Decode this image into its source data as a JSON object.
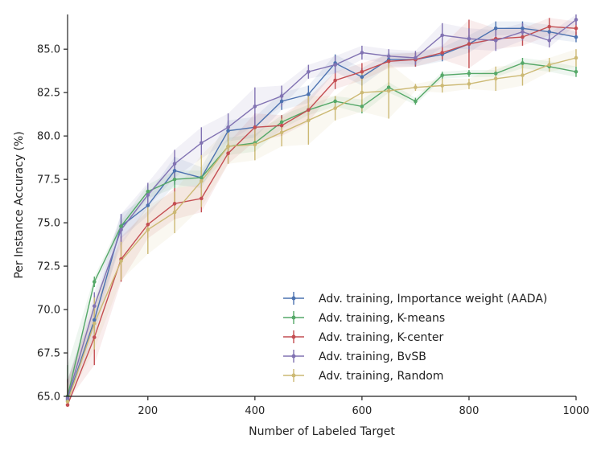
{
  "chart_data": {
    "type": "line",
    "xlabel": "Number of Labeled Target",
    "ylabel": "Per Instance Accuracy (%)",
    "xlim": [
      50,
      1000
    ],
    "ylim": [
      65.0,
      87.0
    ],
    "xticks": [
      200,
      400,
      600,
      800,
      1000
    ],
    "xtick_labels": [
      "200",
      "400",
      "600",
      "800",
      "1000"
    ],
    "yticks": [
      65.0,
      67.5,
      70.0,
      72.5,
      75.0,
      77.5,
      80.0,
      82.5,
      85.0
    ],
    "ytick_labels": [
      "65.0",
      "67.5",
      "70.0",
      "72.5",
      "75.0",
      "77.5",
      "80.0",
      "82.5",
      "85.0"
    ],
    "legend_position": "lower-right",
    "x": [
      50,
      100,
      150,
      200,
      250,
      300,
      350,
      400,
      450,
      500,
      550,
      600,
      650,
      700,
      750,
      800,
      850,
      900,
      950,
      1000
    ],
    "series": [
      {
        "name": "Adv. training, Importance weight (AADA)",
        "color": "#4c72b0",
        "values": [
          64.8,
          69.4,
          74.8,
          76.0,
          78.0,
          77.6,
          80.3,
          80.5,
          82.0,
          82.4,
          84.2,
          83.4,
          84.4,
          84.4,
          84.7,
          85.3,
          86.2,
          86.2,
          86.0,
          85.7
        ],
        "errors": [
          1.2,
          0.9,
          0.7,
          0.6,
          0.8,
          0.6,
          0.6,
          0.6,
          0.5,
          0.5,
          0.5,
          0.5,
          0.4,
          0.4,
          0.4,
          0.5,
          0.4,
          0.4,
          0.4,
          0.3
        ]
      },
      {
        "name": "Adv. training, K-means",
        "color": "#55a868",
        "values": [
          65.0,
          71.6,
          74.8,
          76.8,
          77.5,
          77.6,
          79.4,
          79.6,
          80.8,
          81.5,
          82.0,
          81.7,
          82.8,
          82.0,
          83.5,
          83.6,
          83.6,
          84.2,
          84.0,
          83.7
        ],
        "errors": [
          1.8,
          0.3,
          0.3,
          0.4,
          0.5,
          0.4,
          0.5,
          0.5,
          0.4,
          0.3,
          0.3,
          0.4,
          0.3,
          0.2,
          0.2,
          0.2,
          0.2,
          0.3,
          0.3,
          0.3
        ]
      },
      {
        "name": "Adv. training, K-center",
        "color": "#c44e52",
        "values": [
          64.5,
          68.4,
          72.9,
          74.9,
          76.1,
          76.4,
          79.0,
          80.5,
          80.6,
          81.5,
          83.2,
          83.7,
          84.3,
          84.4,
          84.8,
          85.3,
          85.6,
          85.7,
          86.3,
          86.2
        ],
        "errors": [
          1.5,
          1.6,
          1.3,
          0.8,
          0.9,
          0.8,
          0.6,
          0.8,
          0.6,
          0.7,
          0.5,
          0.5,
          0.4,
          0.4,
          0.4,
          1.4,
          0.6,
          0.5,
          0.5,
          0.4
        ]
      },
      {
        "name": "Adv. training, BvSB",
        "color": "#8172b2",
        "values": [
          64.9,
          70.2,
          74.6,
          76.6,
          78.4,
          79.6,
          80.5,
          81.7,
          82.3,
          83.7,
          84.1,
          84.8,
          84.6,
          84.5,
          85.8,
          85.6,
          85.5,
          86.0,
          85.5,
          86.7
        ],
        "errors": [
          1.0,
          0.8,
          0.9,
          0.7,
          0.8,
          0.9,
          0.8,
          1.1,
          0.6,
          0.4,
          0.5,
          0.4,
          0.4,
          0.4,
          0.7,
          0.6,
          0.6,
          0.5,
          0.4,
          0.3
        ]
      },
      {
        "name": "Adv. training, Random",
        "color": "#ccb974",
        "values": [
          64.7,
          69.2,
          72.8,
          74.6,
          75.6,
          77.4,
          79.4,
          79.5,
          80.2,
          80.9,
          81.6,
          82.5,
          82.6,
          82.8,
          82.9,
          83.0,
          83.3,
          83.5,
          84.1,
          84.5
        ],
        "errors": [
          1.1,
          1.5,
          1.1,
          1.4,
          1.2,
          1.5,
          1.0,
          0.9,
          0.8,
          1.4,
          0.7,
          1.1,
          1.6,
          0.2,
          0.4,
          0.3,
          0.7,
          0.6,
          0.4,
          0.5
        ]
      }
    ]
  }
}
